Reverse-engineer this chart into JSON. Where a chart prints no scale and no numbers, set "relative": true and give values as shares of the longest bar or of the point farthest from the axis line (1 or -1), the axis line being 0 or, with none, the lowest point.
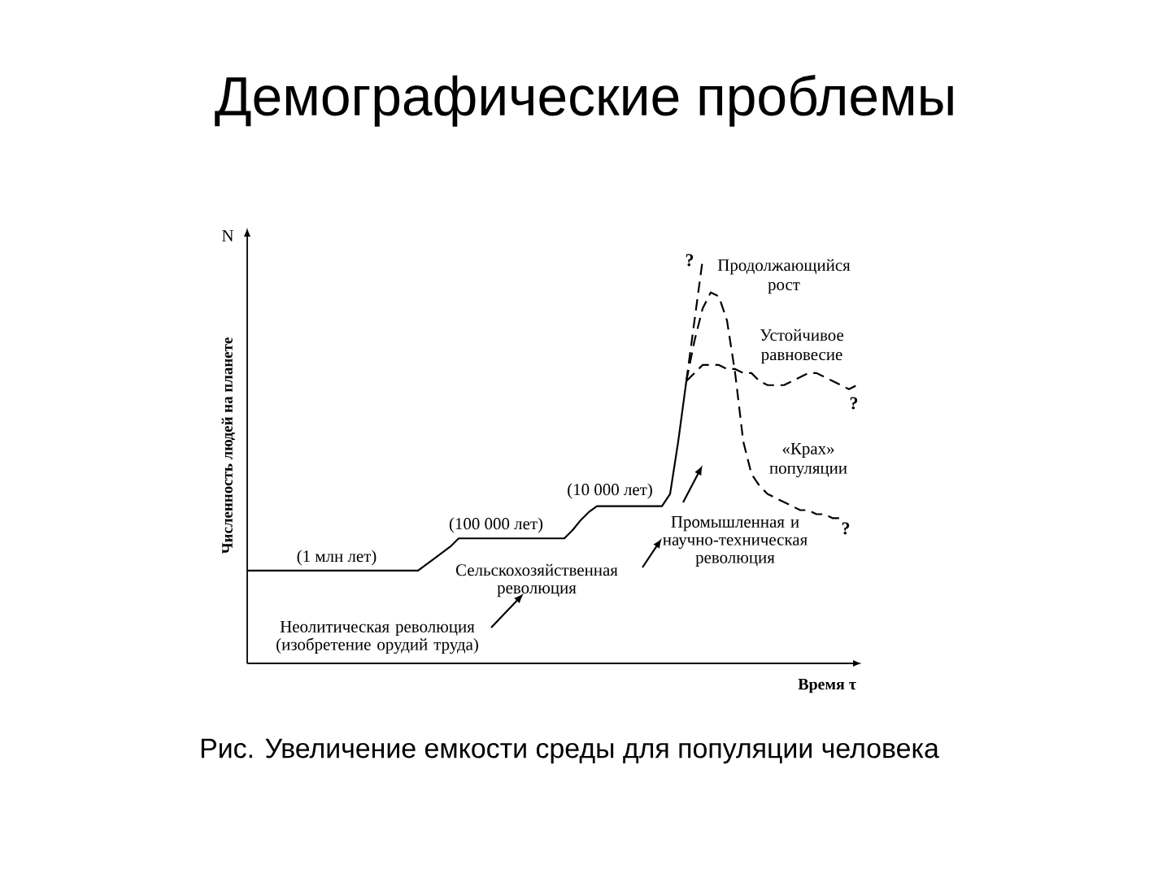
{
  "chart_data": {
    "type": "line",
    "title": "Демографические проблемы",
    "relative": true,
    "ylabel": "Численность людей на планете",
    "xlabel": "Время τ",
    "marker": "none",
    "categories": [
      null,
      null,
      null,
      null,
      null,
      null,
      null,
      null,
      null,
      null,
      null,
      null,
      null,
      null,
      null,
      null,
      null,
      null,
      null,
      null,
      null,
      null,
      null,
      null,
      null,
      null,
      null,
      null,
      null,
      null,
      null,
      null,
      null,
      null,
      null,
      null,
      null,
      null,
      null,
      null,
      null,
      null,
      null,
      null,
      null,
      null,
      null,
      null,
      null,
      null,
      null,
      null,
      null,
      null,
      null,
      null,
      null,
      null,
      null,
      null,
      null,
      null,
      null,
      null,
      null,
      null,
      null,
      null,
      null,
      null,
      null,
      null,
      null,
      null,
      null,
      null
    ],
    "series": [
      {
        "color": "#000000",
        "line_style": "solid",
        "values": [
          0.23,
          0.23,
          0.23,
          0.23,
          0.23,
          0.23,
          0.23,
          0.23,
          0.23,
          0.23,
          0.23,
          0.23,
          0.23,
          0.23,
          0.23,
          0.23,
          0.23,
          0.23,
          0.23,
          0.23,
          0.23,
          0.23,
          0.245,
          0.26,
          0.275,
          0.29,
          0.31,
          0.31,
          0.31,
          0.31,
          0.31,
          0.31,
          0.31,
          0.31,
          0.31,
          0.31,
          0.31,
          0.31,
          0.31,
          0.31,
          0.33,
          0.355,
          0.375,
          0.39,
          0.39,
          0.39,
          0.39,
          0.39,
          0.39,
          0.39,
          0.39,
          0.39,
          0.42,
          0.55,
          0.7,
          null,
          null,
          null,
          null,
          null,
          null,
          null,
          null,
          null,
          null,
          null,
          null,
          null,
          null,
          null,
          null,
          null,
          null,
          null,
          null,
          null
        ]
      },
      {
        "name": "Продолжающийся рост",
        "color": "#000000",
        "line_style": "dashed",
        "values": [
          null,
          null,
          null,
          null,
          null,
          null,
          null,
          null,
          null,
          null,
          null,
          null,
          null,
          null,
          null,
          null,
          null,
          null,
          null,
          null,
          null,
          null,
          null,
          null,
          null,
          null,
          null,
          null,
          null,
          null,
          null,
          null,
          null,
          null,
          null,
          null,
          null,
          null,
          null,
          null,
          null,
          null,
          null,
          null,
          null,
          null,
          null,
          null,
          null,
          null,
          null,
          null,
          null,
          null,
          0.7,
          0.85,
          1.0,
          null,
          null,
          null,
          null,
          null,
          null,
          null,
          null,
          null,
          null,
          null,
          null,
          null,
          null,
          null,
          null,
          null,
          null,
          null
        ]
      },
      {
        "name": "Устойчивое равновесие",
        "color": "#000000",
        "line_style": "dashed",
        "values": [
          null,
          null,
          null,
          null,
          null,
          null,
          null,
          null,
          null,
          null,
          null,
          null,
          null,
          null,
          null,
          null,
          null,
          null,
          null,
          null,
          null,
          null,
          null,
          null,
          null,
          null,
          null,
          null,
          null,
          null,
          null,
          null,
          null,
          null,
          null,
          null,
          null,
          null,
          null,
          null,
          null,
          null,
          null,
          null,
          null,
          null,
          null,
          null,
          null,
          null,
          null,
          null,
          null,
          null,
          0.7,
          0.72,
          0.74,
          0.74,
          0.74,
          0.73,
          0.73,
          0.72,
          0.72,
          0.7,
          0.69,
          0.69,
          0.69,
          0.7,
          0.71,
          0.72,
          0.72,
          0.71,
          0.7,
          0.69,
          0.68,
          0.69
        ]
      },
      {
        "name": "«Крах» популяции",
        "color": "#000000",
        "line_style": "dashed",
        "values": [
          null,
          null,
          null,
          null,
          null,
          null,
          null,
          null,
          null,
          null,
          null,
          null,
          null,
          null,
          null,
          null,
          null,
          null,
          null,
          null,
          null,
          null,
          null,
          null,
          null,
          null,
          null,
          null,
          null,
          null,
          null,
          null,
          null,
          null,
          null,
          null,
          null,
          null,
          null,
          null,
          null,
          null,
          null,
          null,
          null,
          null,
          null,
          null,
          null,
          null,
          null,
          null,
          null,
          null,
          0.7,
          0.8,
          0.88,
          0.92,
          0.91,
          0.85,
          0.72,
          0.55,
          0.47,
          0.44,
          0.42,
          0.41,
          0.4,
          0.39,
          0.38,
          0.38,
          0.37,
          0.37,
          0.36,
          0.36,
          null,
          null
        ]
      }
    ],
    "annotations": [
      "N",
      "(1 млн лет)",
      "(100 000 лет)",
      "(10 000 лет)",
      "Сельскохозяйственная революция",
      "Неолитическая революция (изобретение орудий труда)",
      "Промышленная и научно-техническая революция",
      "?",
      "?",
      "?",
      "Рис. Увеличение емкости среды для популяции человека"
    ]
  }
}
